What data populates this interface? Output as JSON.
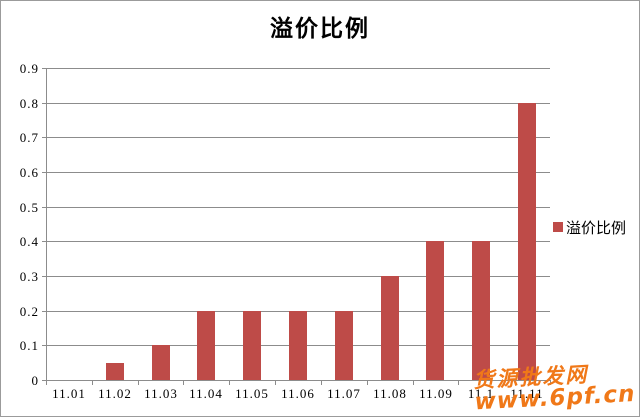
{
  "chart_data": {
    "type": "bar",
    "title": "溢价比例",
    "categories": [
      "11.01",
      "11.02",
      "11.03",
      "11.04",
      "11.05",
      "11.06",
      "11.07",
      "11.08",
      "11.09",
      "11.1",
      "11.11"
    ],
    "values": [
      0,
      0.05,
      0.1,
      0.2,
      0.2,
      0.2,
      0.2,
      0.3,
      0.4,
      0.4,
      0.8
    ],
    "series_name": "溢价比例",
    "xlabel": "",
    "ylabel": "",
    "ylim": [
      0,
      0.9
    ],
    "yticks": [
      "0",
      "0.1",
      "0.2",
      "0.3",
      "0.4",
      "0.5",
      "0.6",
      "0.7",
      "0.8",
      "0.9"
    ],
    "grid": true,
    "legend_position": "right",
    "bar_color": "#be4b48",
    "axis_color": "#8c8c8c"
  },
  "legend": {
    "label": "溢价比例",
    "swatch_color": "#be4b48"
  },
  "watermark": {
    "line1": "货源批发网",
    "line2": "www.6pf.cn",
    "color": "#f07818"
  }
}
